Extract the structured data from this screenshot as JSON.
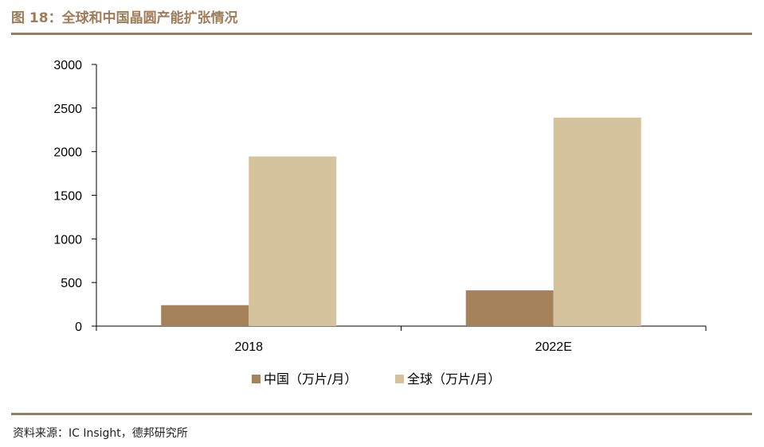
{
  "figure": {
    "title": "图 18：全球和中国晶圆产能扩张情况",
    "source": "资料来源：IC Insight，德邦研究所"
  },
  "chart_data": {
    "type": "bar",
    "categories": [
      "2018",
      "2022E"
    ],
    "series": [
      {
        "name": "中国（万片/月）",
        "values": [
          240,
          410
        ],
        "color": "#a6825a"
      },
      {
        "name": "全球（万片/月）",
        "values": [
          1945,
          2390
        ],
        "color": "#d5c49b"
      }
    ],
    "ylim": [
      0,
      3000
    ],
    "yticks": [
      0,
      500,
      1000,
      1500,
      2000,
      2500,
      3000
    ],
    "grid": false,
    "legend_position": "bottom"
  }
}
